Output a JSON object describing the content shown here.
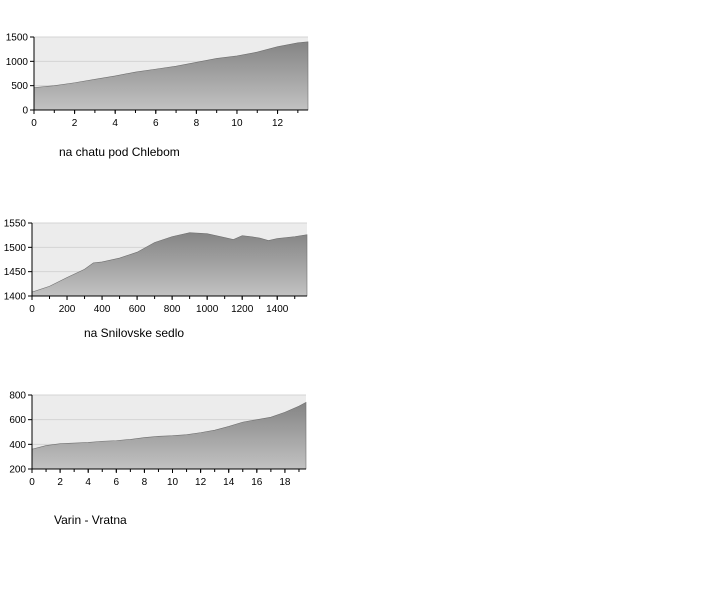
{
  "chart_data": [
    {
      "type": "area",
      "caption": "na chatu pod Chlebom",
      "x_ticks": [
        0,
        2,
        4,
        6,
        8,
        10,
        12
      ],
      "y_ticks": [
        0,
        500,
        1000,
        1500
      ],
      "xlim": [
        0,
        13.5
      ],
      "ylim": [
        0,
        1500
      ],
      "series": [
        {
          "x": [
            0,
            1,
            2,
            3,
            4,
            5,
            6,
            7,
            8,
            9,
            10,
            11,
            12,
            13,
            13.5
          ],
          "y": [
            460,
            500,
            560,
            630,
            700,
            780,
            840,
            900,
            980,
            1060,
            1110,
            1190,
            1300,
            1380,
            1400
          ]
        }
      ],
      "grid": true,
      "legend": "none",
      "fill_top": "#848484",
      "fill_bottom": "#c2c2c2",
      "plot_background": "#ececec"
    },
    {
      "type": "area",
      "caption": "na Snilovske sedlo",
      "x_ticks": [
        0,
        200,
        400,
        600,
        800,
        1000,
        1200,
        1400
      ],
      "y_ticks": [
        1400,
        1450,
        1500,
        1550
      ],
      "xlim": [
        0,
        1570
      ],
      "ylim": [
        1400,
        1550
      ],
      "series": [
        {
          "x": [
            0,
            100,
            200,
            300,
            350,
            400,
            500,
            600,
            700,
            800,
            900,
            1000,
            1100,
            1150,
            1200,
            1250,
            1300,
            1350,
            1400,
            1500,
            1570
          ],
          "y": [
            1408,
            1420,
            1438,
            1455,
            1468,
            1470,
            1478,
            1490,
            1510,
            1522,
            1530,
            1528,
            1520,
            1516,
            1524,
            1522,
            1519,
            1514,
            1518,
            1522,
            1526
          ]
        }
      ],
      "grid": true,
      "legend": "none",
      "fill_top": "#848484",
      "fill_bottom": "#c2c2c2",
      "plot_background": "#ececec"
    },
    {
      "type": "area",
      "caption": "Varin - Vratna",
      "x_ticks": [
        0,
        2,
        4,
        6,
        8,
        10,
        12,
        14,
        16,
        18
      ],
      "y_ticks": [
        200,
        400,
        600,
        800
      ],
      "xlim": [
        0,
        19.5
      ],
      "ylim": [
        200,
        800
      ],
      "series": [
        {
          "x": [
            0,
            1,
            2,
            3,
            4,
            5,
            6,
            7,
            8,
            9,
            10,
            11,
            12,
            13,
            14,
            15,
            16,
            17,
            18,
            19,
            19.5
          ],
          "y": [
            360,
            390,
            405,
            410,
            415,
            425,
            430,
            440,
            455,
            465,
            470,
            478,
            495,
            515,
            545,
            580,
            600,
            620,
            660,
            710,
            740
          ]
        }
      ],
      "grid": true,
      "legend": "none",
      "fill_top": "#848484",
      "fill_bottom": "#c2c2c2",
      "plot_background": "#ececec"
    }
  ]
}
